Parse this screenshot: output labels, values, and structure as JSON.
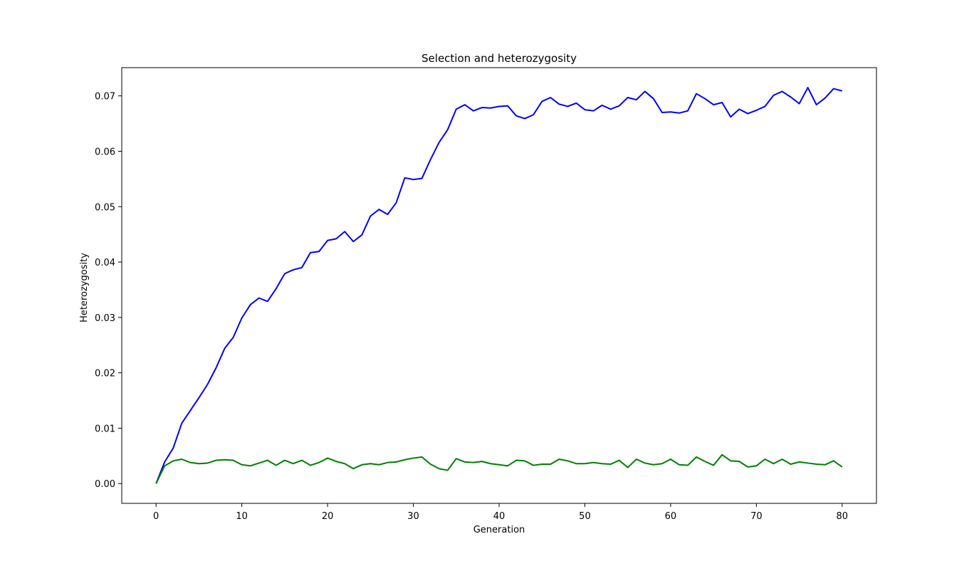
{
  "chart_data": {
    "type": "line",
    "title": "Selection and heterozygosity",
    "xlabel": "Generation",
    "ylabel": "Heterozygosity",
    "xlim": [
      -4,
      84
    ],
    "ylim": [
      -0.00357,
      0.0751
    ],
    "xticks": [
      0,
      10,
      20,
      30,
      40,
      50,
      60,
      70,
      80
    ],
    "xtick_labels": [
      "0",
      "10",
      "20",
      "30",
      "40",
      "50",
      "60",
      "70",
      "80"
    ],
    "yticks": [
      0.0,
      0.01,
      0.02,
      0.03,
      0.04,
      0.05,
      0.06,
      0.07
    ],
    "ytick_labels": [
      "0.00",
      "0.01",
      "0.02",
      "0.03",
      "0.04",
      "0.05",
      "0.06",
      "0.07"
    ],
    "grid": false,
    "legend": "none",
    "x": [
      0,
      1,
      2,
      3,
      4,
      5,
      6,
      7,
      8,
      9,
      10,
      11,
      12,
      13,
      14,
      15,
      16,
      17,
      18,
      19,
      20,
      21,
      22,
      23,
      24,
      25,
      26,
      27,
      28,
      29,
      30,
      31,
      32,
      33,
      34,
      35,
      36,
      37,
      38,
      39,
      40,
      41,
      42,
      43,
      44,
      45,
      46,
      47,
      48,
      49,
      50,
      51,
      52,
      53,
      54,
      55,
      56,
      57,
      58,
      59,
      60,
      61,
      62,
      63,
      64,
      65,
      66,
      67,
      68,
      69,
      70,
      71,
      72,
      73,
      74,
      75,
      76,
      77,
      78,
      79,
      80
    ],
    "series": [
      {
        "color": "#0000ff",
        "values": [
          0.0,
          0.0039,
          0.0064,
          0.0109,
          0.0132,
          0.0155,
          0.0179,
          0.0209,
          0.0244,
          0.0264,
          0.0299,
          0.0323,
          0.0335,
          0.0329,
          0.0352,
          0.0379,
          0.0386,
          0.039,
          0.0417,
          0.0419,
          0.0439,
          0.0442,
          0.0455,
          0.0437,
          0.0449,
          0.0483,
          0.0495,
          0.0486,
          0.0507,
          0.0552,
          0.0549,
          0.0551,
          0.0585,
          0.0616,
          0.0639,
          0.0676,
          0.0684,
          0.0673,
          0.0679,
          0.0678,
          0.0681,
          0.0682,
          0.0664,
          0.0659,
          0.0666,
          0.069,
          0.0697,
          0.0685,
          0.0681,
          0.0687,
          0.0675,
          0.0673,
          0.0683,
          0.0676,
          0.0682,
          0.0697,
          0.0693,
          0.0708,
          0.0695,
          0.067,
          0.0671,
          0.0669,
          0.0673,
          0.0704,
          0.0695,
          0.0684,
          0.0688,
          0.0662,
          0.0676,
          0.0668,
          0.0674,
          0.0681,
          0.0701,
          0.0708,
          0.0698,
          0.0686,
          0.0715,
          0.0684,
          0.0696,
          0.0713,
          0.0709
        ]
      },
      {
        "color": "#008000",
        "values": [
          0.0,
          0.0032,
          0.0041,
          0.0044,
          0.0038,
          0.0036,
          0.0037,
          0.0042,
          0.0043,
          0.0042,
          0.0034,
          0.0032,
          0.0037,
          0.0042,
          0.0033,
          0.0042,
          0.0036,
          0.0042,
          0.0033,
          0.0038,
          0.0046,
          0.004,
          0.0036,
          0.0027,
          0.0034,
          0.0036,
          0.0034,
          0.0038,
          0.0039,
          0.0043,
          0.0046,
          0.0048,
          0.0035,
          0.0027,
          0.0024,
          0.0045,
          0.0039,
          0.0038,
          0.004,
          0.0036,
          0.0034,
          0.0032,
          0.0042,
          0.0041,
          0.0033,
          0.0035,
          0.0035,
          0.0044,
          0.0041,
          0.0036,
          0.0036,
          0.0038,
          0.0036,
          0.0035,
          0.0042,
          0.0029,
          0.0044,
          0.0037,
          0.0034,
          0.0036,
          0.0044,
          0.0034,
          0.0033,
          0.0048,
          0.004,
          0.0033,
          0.0052,
          0.0041,
          0.004,
          0.003,
          0.0032,
          0.0044,
          0.0036,
          0.0044,
          0.0035,
          0.0039,
          0.0037,
          0.0035,
          0.0034,
          0.0041,
          0.003
        ]
      }
    ]
  }
}
